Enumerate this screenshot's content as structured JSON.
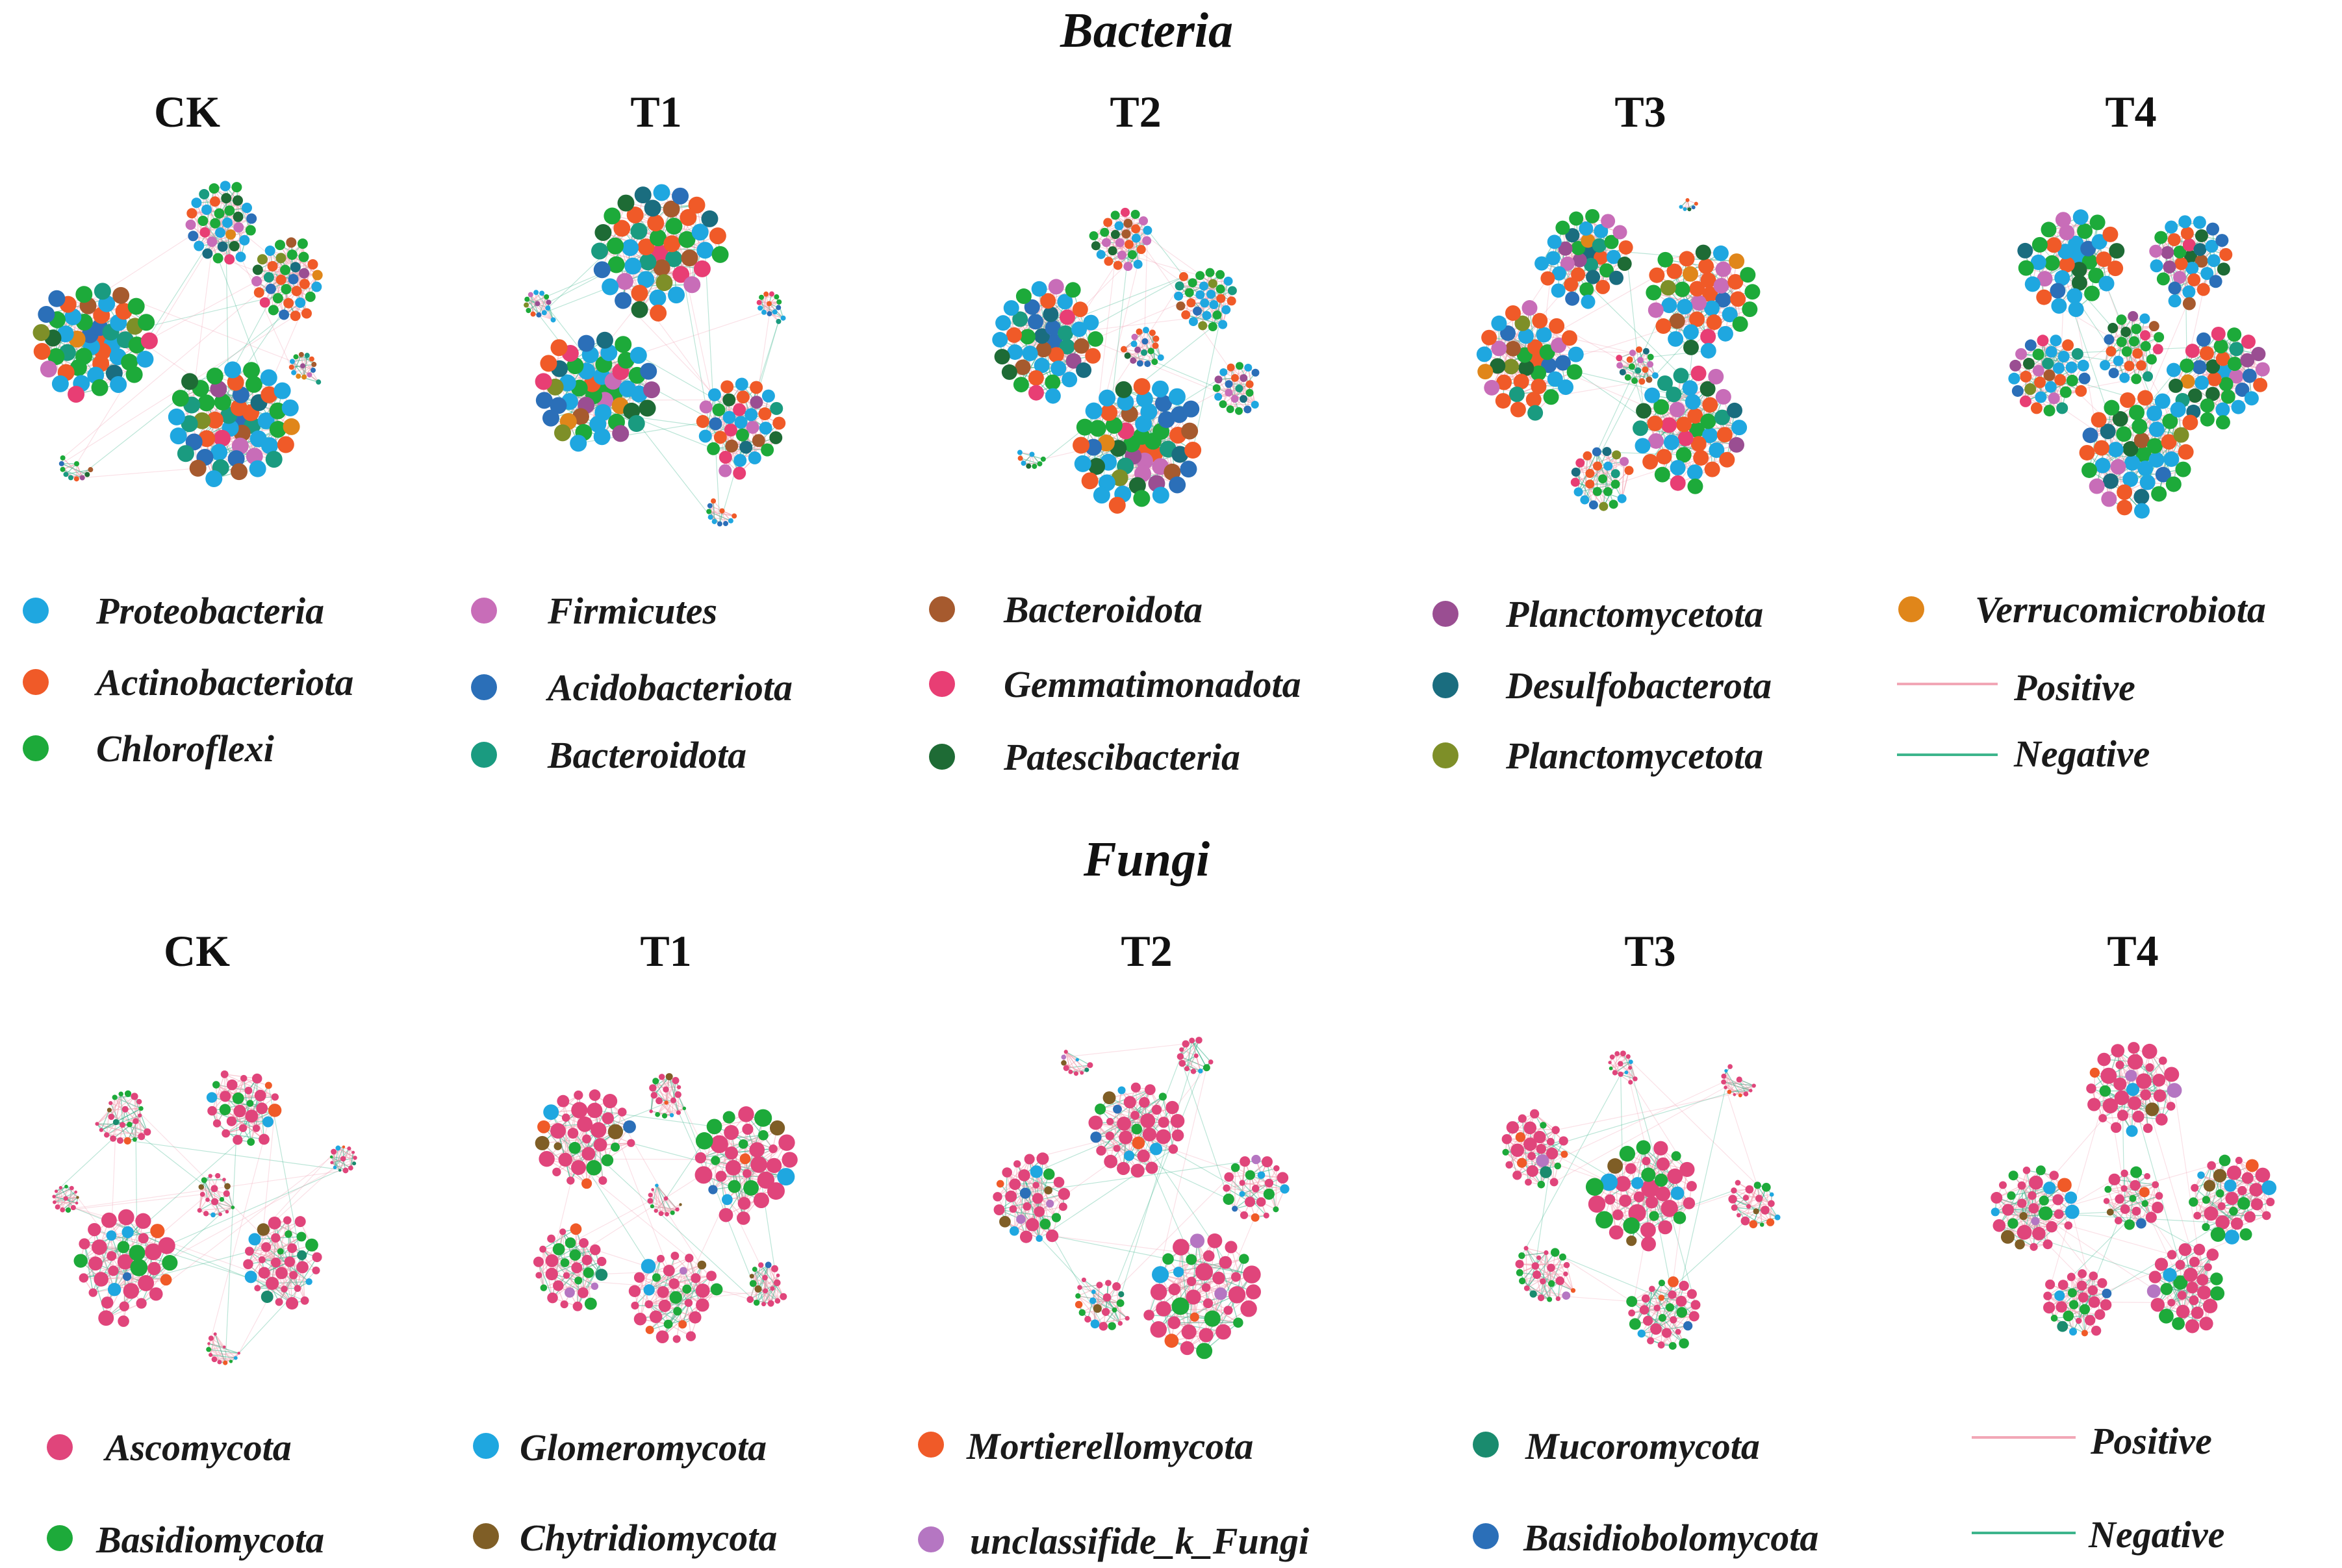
{
  "figure": {
    "sections": [
      {
        "id": "bacteria",
        "title": "Bacteria",
        "panels": [
          "CK",
          "T1",
          "T2",
          "T3",
          "T4"
        ],
        "legend": [
          {
            "label": "Proteobacteria",
            "color": "#1FA7E0",
            "kind": "dot"
          },
          {
            "label": "Actinobacteriota",
            "color": "#F05A28",
            "kind": "dot"
          },
          {
            "label": "Chloroflexi",
            "color": "#1DAA3A",
            "kind": "dot"
          },
          {
            "label": "Firmicutes",
            "color": "#C86DB8",
            "kind": "dot"
          },
          {
            "label": "Acidobacteriota",
            "color": "#2B6FB8",
            "kind": "dot"
          },
          {
            "label": "Bacteroidota",
            "color": "#1A9B80",
            "kind": "dot"
          },
          {
            "label": "Bacteroidota",
            "color": "#A65A2E",
            "kind": "dot"
          },
          {
            "label": "Gemmatimonadota",
            "color": "#E83E74",
            "kind": "dot"
          },
          {
            "label": "Patescibacteria",
            "color": "#1E6B35",
            "kind": "dot"
          },
          {
            "label": "Planctomycetota",
            "color": "#9A4E92",
            "kind": "dot"
          },
          {
            "label": "Desulfobacterota",
            "color": "#1A6D7F",
            "kind": "dot"
          },
          {
            "label": "Planctomycetota",
            "color": "#7E8F28",
            "kind": "dot"
          },
          {
            "label": "Verrucomicrobiota",
            "color": "#E0861A",
            "kind": "dot"
          },
          {
            "label": "Positive",
            "color": "#F2A7B6",
            "kind": "line"
          },
          {
            "label": "Negative",
            "color": "#3DB58C",
            "kind": "line"
          }
        ]
      },
      {
        "id": "fungi",
        "title": "Fungi",
        "panels": [
          "CK",
          "T1",
          "T2",
          "T3",
          "T4"
        ],
        "legend": [
          {
            "label": "Ascomycota",
            "color": "#E0457B",
            "kind": "dot"
          },
          {
            "label": "Basidiomycota",
            "color": "#1DAA3A",
            "kind": "dot"
          },
          {
            "label": "Glomeromycota",
            "color": "#1FA7E0",
            "kind": "dot"
          },
          {
            "label": "Chytridiomycota",
            "color": "#7F5E26",
            "kind": "dot"
          },
          {
            "label": "Mortierellomycota",
            "color": "#F05A28",
            "kind": "dot"
          },
          {
            "label": "unclassifide_k_Fungi",
            "color": "#B576C2",
            "kind": "dot"
          },
          {
            "label": "Mucoromycota",
            "color": "#1A8B6E",
            "kind": "dot"
          },
          {
            "label": "Basidiobolomycota",
            "color": "#2B6FB8",
            "kind": "dot"
          },
          {
            "label": "Positive",
            "color": "#F2A7B6",
            "kind": "line"
          },
          {
            "label": "Negative",
            "color": "#3DB58C",
            "kind": "line"
          }
        ]
      }
    ]
  }
}
